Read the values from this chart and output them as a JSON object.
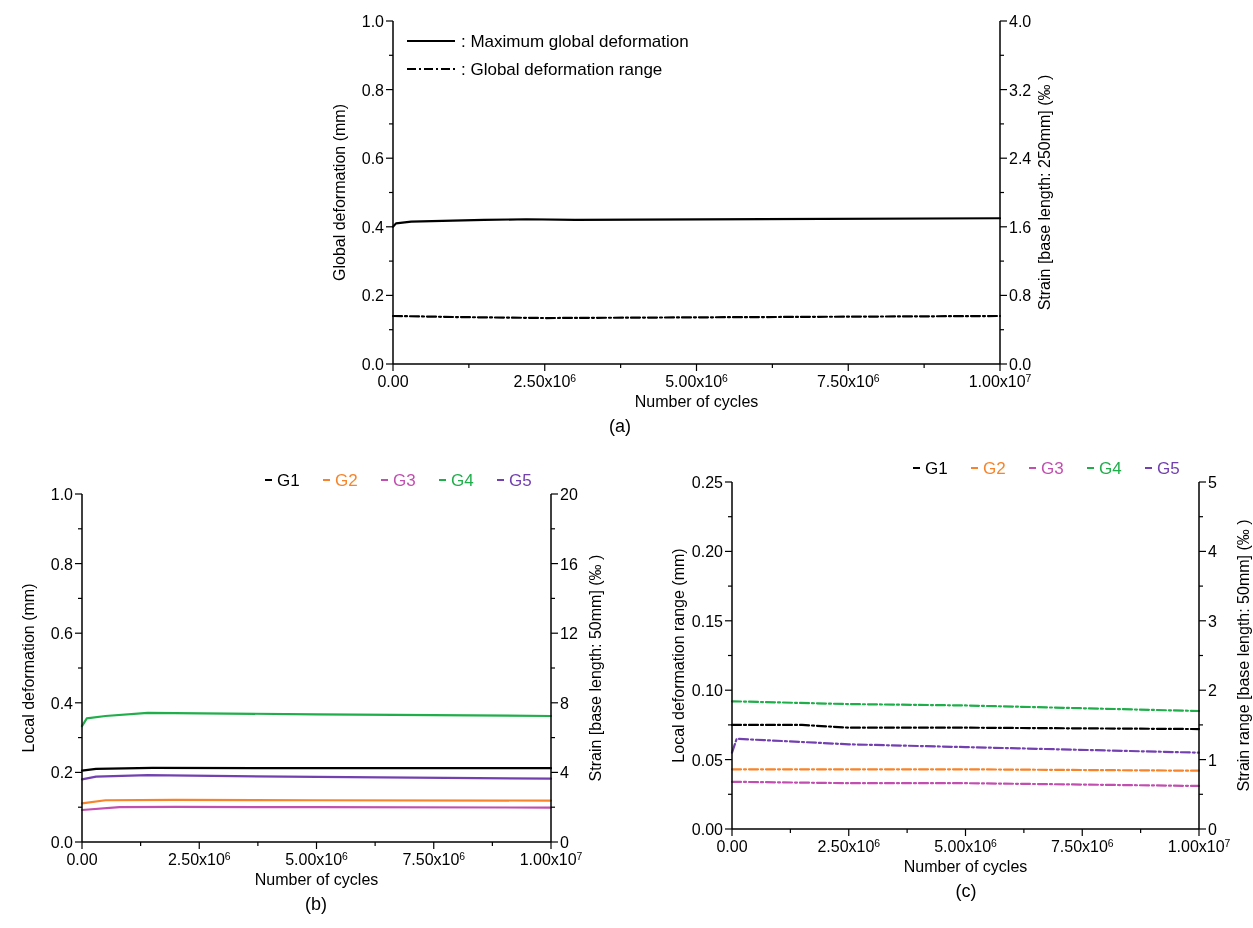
{
  "chart_data": [
    {
      "type": "line",
      "xlabel": "Number of cycles",
      "ylabel": "Global deformation (mm)",
      "y2label": "Strain [base length: 250mm] (‰ )",
      "annotations": [
        "(a)"
      ],
      "legend": "top left",
      "xlim": [
        0,
        10000000
      ],
      "xticks": [
        {
          "value": 0,
          "label": "0.00"
        },
        {
          "value": 1250000,
          "label": null
        },
        {
          "value": 2500000,
          "label": "2.50x10$^{6}$"
        },
        {
          "value": 3750000,
          "label": null
        },
        {
          "value": 5000000,
          "label": "5.00x10$^{6}$"
        },
        {
          "value": 6250000,
          "label": null
        },
        {
          "value": 7500000,
          "label": "7.50x10$^{6}$"
        },
        {
          "value": 8750000,
          "label": null
        },
        {
          "value": 10000000,
          "label": "1.00x10$^{7}$"
        }
      ],
      "ylim": [
        0,
        1
      ],
      "yticks": [
        {
          "value": 0,
          "label": "0.0"
        },
        {
          "value": 0.1,
          "label": null
        },
        {
          "value": 0.2,
          "label": "0.2"
        },
        {
          "value": 0.3,
          "label": null
        },
        {
          "value": 0.4,
          "label": "0.4"
        },
        {
          "value": 0.5,
          "label": null
        },
        {
          "value": 0.6,
          "label": "0.6"
        },
        {
          "value": 0.7,
          "label": null
        },
        {
          "value": 0.8,
          "label": "0.8"
        },
        {
          "value": 0.9,
          "label": null
        },
        {
          "value": 1,
          "label": "1.0"
        }
      ],
      "y2lim": [
        0,
        4
      ],
      "y2ticks": [
        {
          "value": 0,
          "label": "0.0"
        },
        {
          "value": 0.4,
          "label": null
        },
        {
          "value": 0.8,
          "label": "0.8"
        },
        {
          "value": 1.2,
          "label": null
        },
        {
          "value": 1.6,
          "label": "1.6"
        },
        {
          "value": 2.0,
          "label": null
        },
        {
          "value": 2.4,
          "label": "2.4"
        },
        {
          "value": 2.8,
          "label": null
        },
        {
          "value": 3.2,
          "label": "3.2"
        },
        {
          "value": 3.6,
          "label": null
        },
        {
          "value": 4,
          "label": "4.0"
        }
      ],
      "series": [
        {
          "name": ": Maximum global deformation",
          "color": "#000000",
          "line_style": "solid",
          "x": [
            0,
            50000,
            300000,
            1500000,
            2200000,
            3000000,
            10000000
          ],
          "values": [
            0.4,
            0.41,
            0.415,
            0.42,
            0.422,
            0.42,
            0.425
          ]
        },
        {
          "name": ": Global deformation range",
          "color": "#000000",
          "line_style": "dashed",
          "x": [
            0,
            1000000,
            2500000,
            5000000,
            10000000
          ],
          "values": [
            0.14,
            0.137,
            0.134,
            0.136,
            0.14
          ]
        }
      ]
    },
    {
      "type": "line",
      "xlabel": "Number of cycles",
      "ylabel": "Local deformation (mm)",
      "y2label": "Strain [base length: 50mm] (‰ )",
      "annotations": [
        "(b)"
      ],
      "legend": "top right",
      "xlim": [
        0,
        10000000
      ],
      "xticks": [
        {
          "value": 0,
          "label": "0.00"
        },
        {
          "value": 1250000,
          "label": null
        },
        {
          "value": 2500000,
          "label": "2.50x10$^{6}$"
        },
        {
          "value": 3750000,
          "label": null
        },
        {
          "value": 5000000,
          "label": "5.00x10$^{6}$"
        },
        {
          "value": 6250000,
          "label": null
        },
        {
          "value": 7500000,
          "label": "7.50x10$^{6}$"
        },
        {
          "value": 8750000,
          "label": null
        },
        {
          "value": 10000000,
          "label": "1.00x10$^{7}$"
        }
      ],
      "ylim": [
        0,
        1
      ],
      "yticks": [
        {
          "value": 0,
          "label": "0.0"
        },
        {
          "value": 0.1,
          "label": null
        },
        {
          "value": 0.2,
          "label": "0.2"
        },
        {
          "value": 0.3,
          "label": null
        },
        {
          "value": 0.4,
          "label": "0.4"
        },
        {
          "value": 0.5,
          "label": null
        },
        {
          "value": 0.6,
          "label": "0.6"
        },
        {
          "value": 0.7,
          "label": null
        },
        {
          "value": 0.8,
          "label": "0.8"
        },
        {
          "value": 0.9,
          "label": null
        },
        {
          "value": 1,
          "label": "1.0"
        }
      ],
      "y2lim": [
        0,
        20
      ],
      "y2ticks": [
        0,
        {
          "value": 2,
          "label": null
        },
        4,
        {
          "value": 6,
          "label": null
        },
        8,
        {
          "value": 10,
          "label": null
        },
        12,
        {
          "value": 14,
          "label": null
        },
        16,
        {
          "value": 18,
          "label": null
        },
        20
      ],
      "series": [
        {
          "name": "G1",
          "color": "#000000",
          "line_style": "solid",
          "x": [
            0,
            300000,
            1500000,
            5000000,
            10000000
          ],
          "values": [
            0.205,
            0.21,
            0.213,
            0.212,
            0.212
          ]
        },
        {
          "name": "G2",
          "color": "#f7842a",
          "line_style": "solid",
          "x": [
            0,
            500000,
            2000000,
            5000000,
            10000000
          ],
          "values": [
            0.111,
            0.12,
            0.121,
            0.12,
            0.119
          ]
        },
        {
          "name": "G3",
          "color": "#c14fb0",
          "line_style": "solid",
          "x": [
            0,
            800000,
            2000000,
            5000000,
            10000000
          ],
          "values": [
            0.092,
            0.1,
            0.101,
            0.1,
            0.099
          ]
        },
        {
          "name": "G4",
          "color": "#1fae4a",
          "line_style": "solid",
          "x": [
            0,
            100000,
            500000,
            1400000,
            5000000,
            10000000
          ],
          "values": [
            0.333,
            0.355,
            0.362,
            0.371,
            0.367,
            0.362
          ]
        },
        {
          "name": "G5",
          "color": "#7340b0",
          "line_style": "solid",
          "x": [
            0,
            300000,
            1400000,
            5000000,
            10000000
          ],
          "values": [
            0.18,
            0.188,
            0.192,
            0.187,
            0.182
          ]
        }
      ]
    },
    {
      "type": "line",
      "xlabel": "Number of cycles",
      "ylabel": "Local deformation range (mm)",
      "y2label": "Strain range [base length: 50mm] (‰ )",
      "annotations": [
        "(c)"
      ],
      "legend": "top right",
      "xlim": [
        0,
        10000000
      ],
      "xticks": [
        {
          "value": 0,
          "label": "0.00"
        },
        {
          "value": 1250000,
          "label": null
        },
        {
          "value": 2500000,
          "label": "2.50x10$^{6}$"
        },
        {
          "value": 3750000,
          "label": null
        },
        {
          "value": 5000000,
          "label": "5.00x10$^{6}$"
        },
        {
          "value": 6250000,
          "label": null
        },
        {
          "value": 7500000,
          "label": "7.50x10$^{6}$"
        },
        {
          "value": 8750000,
          "label": null
        },
        {
          "value": 10000000,
          "label": "1.00x10$^{7}$"
        }
      ],
      "ylim": [
        0,
        0.25
      ],
      "yticks": [
        {
          "value": 0,
          "label": "0.00"
        },
        {
          "value": 0.025,
          "label": null
        },
        {
          "value": 0.05,
          "label": "0.05"
        },
        {
          "value": 0.075,
          "label": null
        },
        {
          "value": 0.1,
          "label": "0.10"
        },
        {
          "value": 0.125,
          "label": null
        },
        {
          "value": 0.15,
          "label": "0.15"
        },
        {
          "value": 0.175,
          "label": null
        },
        {
          "value": 0.2,
          "label": "0.20"
        },
        {
          "value": 0.225,
          "label": null
        },
        {
          "value": 0.25,
          "label": "0.25"
        }
      ],
      "y2lim": [
        0,
        5
      ],
      "y2ticks": [
        0,
        {
          "value": 0.5,
          "label": null
        },
        1,
        {
          "value": 1.5,
          "label": null
        },
        2,
        {
          "value": 2.5,
          "label": null
        },
        3,
        {
          "value": 3.5,
          "label": null
        },
        4,
        {
          "value": 4.5,
          "label": null
        },
        5
      ],
      "series": [
        {
          "name": "G1",
          "color": "#000000",
          "line_style": "dashed",
          "x": [
            0,
            1500000,
            2500000,
            5000000,
            10000000
          ],
          "values": [
            0.075,
            0.075,
            0.073,
            0.073,
            0.072
          ]
        },
        {
          "name": "G2",
          "color": "#f7842a",
          "line_style": "dashed",
          "x": [
            0,
            2500000,
            5000000,
            10000000
          ],
          "values": [
            0.043,
            0.043,
            0.043,
            0.042
          ]
        },
        {
          "name": "G3",
          "color": "#c14fb0",
          "line_style": "dashed",
          "x": [
            0,
            2500000,
            5000000,
            10000000
          ],
          "values": [
            0.034,
            0.033,
            0.033,
            0.031
          ]
        },
        {
          "name": "G4",
          "color": "#1fae4a",
          "line_style": "dashed",
          "x": [
            0,
            2500000,
            5000000,
            10000000
          ],
          "values": [
            0.092,
            0.09,
            0.089,
            0.085
          ]
        },
        {
          "name": "G5",
          "color": "#7340b0",
          "line_style": "dashed",
          "x": [
            0,
            100000,
            2500000,
            5000000,
            10000000
          ],
          "values": [
            0.055,
            0.065,
            0.061,
            0.059,
            0.055
          ]
        }
      ]
    }
  ]
}
